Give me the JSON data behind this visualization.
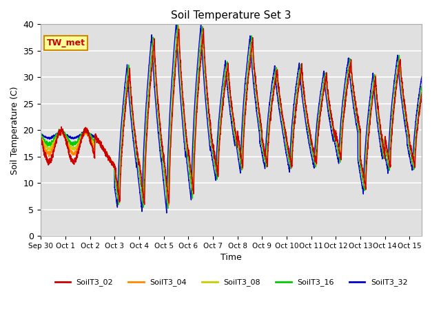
{
  "title": "Soil Temperature Set 3",
  "xlabel": "Time",
  "ylabel": "Soil Temperature (C)",
  "ylim": [
    0,
    40
  ],
  "background_color": "#e8e8e8",
  "grid_color": "#ffffff",
  "annotation_text": "TW_met",
  "annotation_box_color": "#ffff99",
  "annotation_box_edge": "#cc8800",
  "sensors": [
    {
      "name": "SoilT3_02",
      "color": "#cc0000"
    },
    {
      "name": "SoilT3_04",
      "color": "#ff8800"
    },
    {
      "name": "SoilT3_08",
      "color": "#cccc00"
    },
    {
      "name": "SoilT3_16",
      "color": "#00cc00"
    },
    {
      "name": "SoilT3_32",
      "color": "#0000cc"
    }
  ],
  "x_tick_labels": [
    "Sep 30",
    "Oct 1",
    "Oct 2",
    "Oct 3",
    "Oct 4",
    "Oct 5",
    "Oct 6",
    "Oct 7",
    "Oct 8",
    "Oct 9",
    "Oct 10",
    "Oct 11",
    "Oct 12",
    "Oct 13",
    "Oct 14",
    "Oct 15"
  ],
  "x_tick_positions": [
    0,
    1,
    2,
    3,
    4,
    5,
    6,
    7,
    8,
    9,
    10,
    11,
    12,
    13,
    14,
    15
  ]
}
